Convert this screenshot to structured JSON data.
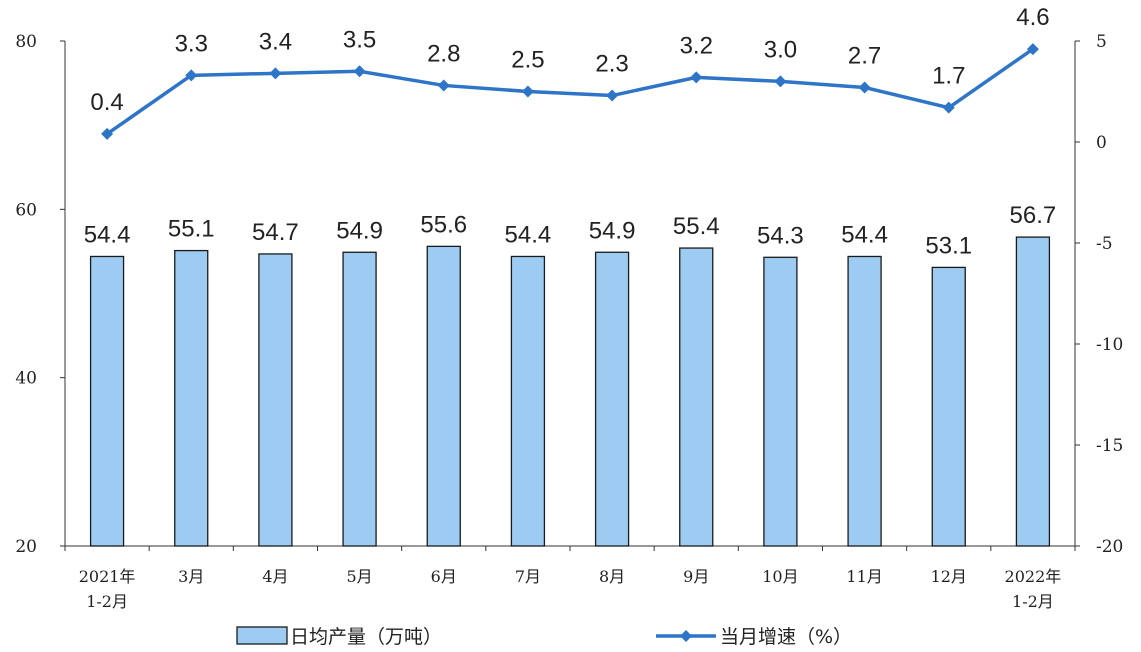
{
  "chart_data": {
    "type": "bar",
    "categories": [
      [
        "2021年",
        "1-2月"
      ],
      [
        "3月"
      ],
      [
        "4月"
      ],
      [
        "5月"
      ],
      [
        "6月"
      ],
      [
        "7月"
      ],
      [
        "8月"
      ],
      [
        "9月"
      ],
      [
        "10月"
      ],
      [
        "11月"
      ],
      [
        "12月"
      ],
      [
        "2022年",
        "1-2月"
      ]
    ],
    "series": [
      {
        "name": "日均产量（万吨）",
        "type": "bar",
        "axis": "left",
        "color": "#9dcbf2",
        "border_color": "#1a1a1a",
        "values": [
          54.4,
          55.1,
          54.7,
          54.9,
          55.6,
          54.4,
          54.9,
          55.4,
          54.3,
          54.4,
          53.1,
          56.7
        ],
        "labels": [
          "54.4",
          "55.1",
          "54.7",
          "54.9",
          "55.6",
          "54.4",
          "54.9",
          "55.4",
          "54.3",
          "54.4",
          "53.1",
          "56.7"
        ]
      },
      {
        "name": "当月增速（%）",
        "type": "line",
        "axis": "right",
        "color": "#2e75c8",
        "marker": "diamond",
        "values": [
          0.4,
          3.3,
          3.4,
          3.5,
          2.8,
          2.5,
          2.3,
          3.2,
          3.0,
          2.7,
          1.7,
          4.6
        ],
        "labels": [
          "0.4",
          "3.3",
          "3.4",
          "3.5",
          "2.8",
          "2.5",
          "2.3",
          "3.2",
          "3.0",
          "2.7",
          "1.7",
          "4.6"
        ]
      }
    ],
    "y_left": {
      "lim": [
        20,
        80
      ],
      "ticks": [
        20,
        40,
        60,
        80
      ],
      "tick_labels": [
        "20",
        "40",
        "60",
        "80"
      ]
    },
    "y_right": {
      "lim": [
        -20,
        5
      ],
      "ticks": [
        -20,
        -15,
        -10,
        -5,
        0,
        5
      ],
      "tick_labels": [
        "-20",
        "-15",
        "-10",
        "-5",
        "0",
        "5"
      ]
    },
    "grid": false,
    "legend_position": "bottom-center"
  }
}
